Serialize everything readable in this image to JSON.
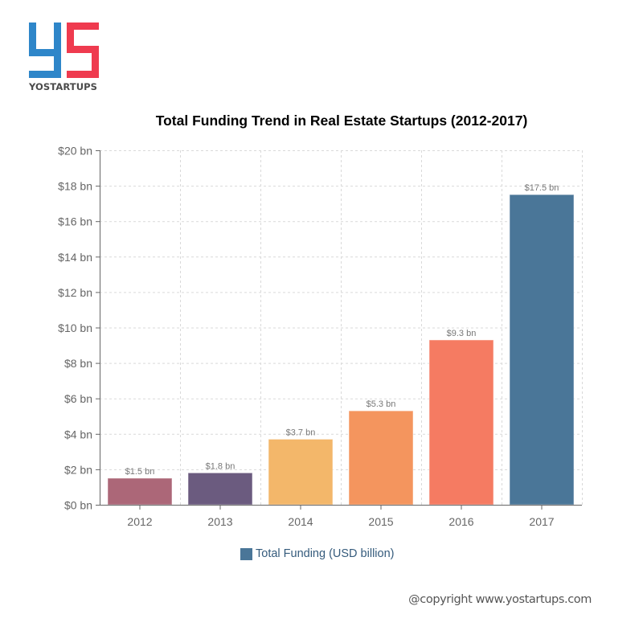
{
  "brand": {
    "logo_letters": "YS",
    "logo_text": "YOSTARTUPS",
    "colors": {
      "y": "#2e86c9",
      "s": "#ef3b4f"
    }
  },
  "chart_data": {
    "type": "bar",
    "title": "Total Funding Trend in Real Estate Startups (2012-2017)",
    "xlabel": "",
    "ylabel": "",
    "categories": [
      "2012",
      "2013",
      "2014",
      "2015",
      "2016",
      "2017"
    ],
    "values": [
      1.5,
      1.8,
      3.7,
      5.3,
      9.3,
      17.5
    ],
    "data_labels": [
      "$1.5 bn",
      "$1.8 bn",
      "$3.7 bn",
      "$5.3 bn",
      "$9.3 bn",
      "$17.5 bn"
    ],
    "bar_colors": [
      "#ac6778",
      "#6b5b7f",
      "#f3b76a",
      "#f4955e",
      "#f57b62",
      "#4a7698"
    ],
    "ylim": [
      0,
      20
    ],
    "y_ticks": [
      0,
      2,
      4,
      6,
      8,
      10,
      12,
      14,
      16,
      18,
      20
    ],
    "y_tick_labels": [
      "$0 bn",
      "$2 bn",
      "$4 bn",
      "$6 bn",
      "$8 bn",
      "$10 bn",
      "$12 bn",
      "$14 bn",
      "$16 bn",
      "$18 bn",
      "$20 bn"
    ],
    "grid": true,
    "legend": {
      "position": "bottom-center",
      "entries": [
        {
          "label": "Total Funding (USD billion)",
          "color": "#4a7698"
        }
      ]
    }
  },
  "footer": {
    "copyright": "@copyright www.yostartups.com"
  }
}
